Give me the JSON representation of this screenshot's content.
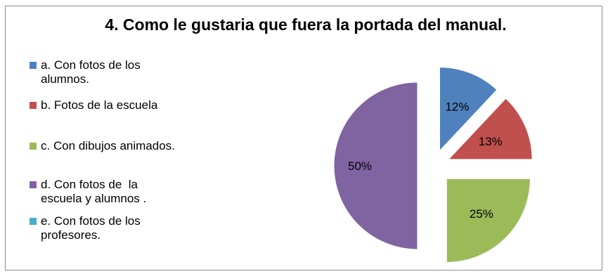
{
  "chart_data": {
    "type": "pie",
    "title": "4. Como le gustaria que fuera la portada del manual.",
    "legend_position": "left",
    "categories": [
      "a. Con fotos de los alumnos.",
      "b. Fotos de la escuela",
      "c. Con dibujos animados.",
      "d. Con fotos de  la escuela y alumnos .",
      "e. Con fotos de los profesores."
    ],
    "legend_lines": [
      [
        "a. Con fotos de los",
        "alumnos."
      ],
      [
        "b. Fotos de la escuela"
      ],
      [
        "c. Con dibujos animados."
      ],
      [
        "d. Con fotos de  la",
        "escuela y alumnos ."
      ],
      [
        "e. Con fotos de los",
        "profesores."
      ]
    ],
    "values": [
      12,
      13,
      25,
      50,
      0
    ],
    "data_labels": [
      "12%",
      "13%",
      "25%",
      "50%",
      ""
    ],
    "colors": [
      "#4f81bd",
      "#c0504d",
      "#9bbb59",
      "#8064a2",
      "#4bacc6"
    ]
  }
}
